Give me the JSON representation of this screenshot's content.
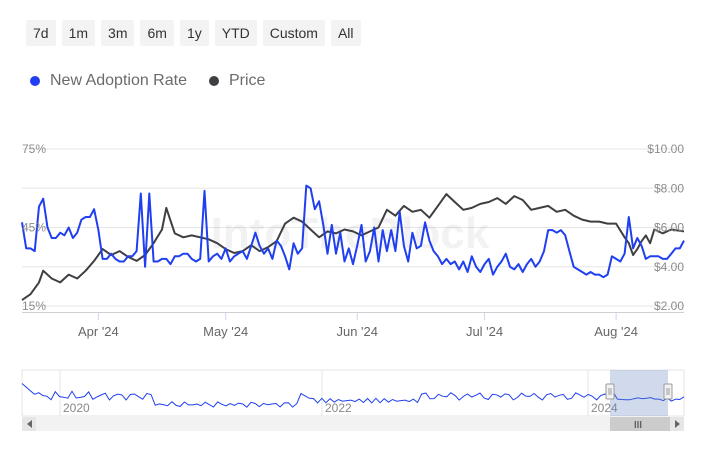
{
  "range_selector": {
    "buttons": [
      "7d",
      "1m",
      "3m",
      "6m",
      "1y",
      "YTD",
      "Custom",
      "All"
    ]
  },
  "legend": {
    "items": [
      {
        "label": "New Adoption Rate",
        "color": "#1f3ff0",
        "icon": "circle-marker"
      },
      {
        "label": "Price",
        "color": "#3d3f42",
        "icon": "circle-marker"
      }
    ]
  },
  "watermark": "IntoTheBlock",
  "colors": {
    "adoption": "#1f3ff0",
    "price": "#3d3f42",
    "grid": "#e6e6e6",
    "axis_text": "#8c8c8c",
    "navigator_mask": "rgba(102,133,194,0.3)"
  },
  "chart_data": {
    "type": "line",
    "x_range": [
      "2024-03-14",
      "2024-08-17"
    ],
    "x_ticks": [
      "Apr '24",
      "May '24",
      "Jun '24",
      "Jul '24",
      "Aug '24"
    ],
    "y_left": {
      "ticks": [
        "15%",
        "45%",
        "75%"
      ],
      "ylim": [
        0.15,
        0.75
      ]
    },
    "y_right": {
      "ticks": [
        "$2.00",
        "$4.00",
        "$6.00",
        "$8.00",
        "$10.00"
      ],
      "ylim": [
        2,
        10
      ]
    },
    "series": [
      {
        "name": "New Adoption Rate",
        "axis": "left",
        "values": [
          [
            "2024-03-14",
            0.47
          ],
          [
            "2024-03-15",
            0.37
          ],
          [
            "2024-03-16",
            0.37
          ],
          [
            "2024-03-17",
            0.36
          ],
          [
            "2024-03-18",
            0.53
          ],
          [
            "2024-03-19",
            0.56
          ],
          [
            "2024-03-20",
            0.45
          ],
          [
            "2024-03-21",
            0.41
          ],
          [
            "2024-03-22",
            0.41
          ],
          [
            "2024-03-23",
            0.43
          ],
          [
            "2024-03-24",
            0.42
          ],
          [
            "2024-03-25",
            0.45
          ],
          [
            "2024-03-26",
            0.41
          ],
          [
            "2024-03-27",
            0.43
          ],
          [
            "2024-03-28",
            0.48
          ],
          [
            "2024-03-29",
            0.49
          ],
          [
            "2024-03-30",
            0.49
          ],
          [
            "2024-03-31",
            0.52
          ],
          [
            "2024-04-01",
            0.44
          ],
          [
            "2024-04-02",
            0.33
          ],
          [
            "2024-04-03",
            0.33
          ],
          [
            "2024-04-04",
            0.35
          ],
          [
            "2024-04-05",
            0.33
          ],
          [
            "2024-04-06",
            0.32
          ],
          [
            "2024-04-07",
            0.32
          ],
          [
            "2024-04-08",
            0.34
          ],
          [
            "2024-04-09",
            0.34
          ],
          [
            "2024-04-10",
            0.36
          ],
          [
            "2024-04-11",
            0.58
          ],
          [
            "2024-04-12",
            0.3
          ],
          [
            "2024-04-13",
            0.58
          ],
          [
            "2024-04-14",
            0.32
          ],
          [
            "2024-04-15",
            0.32
          ],
          [
            "2024-04-16",
            0.33
          ],
          [
            "2024-04-17",
            0.33
          ],
          [
            "2024-04-18",
            0.31
          ],
          [
            "2024-04-19",
            0.34
          ],
          [
            "2024-04-20",
            0.34
          ],
          [
            "2024-04-21",
            0.35
          ],
          [
            "2024-04-22",
            0.35
          ],
          [
            "2024-04-23",
            0.33
          ],
          [
            "2024-04-24",
            0.32
          ],
          [
            "2024-04-25",
            0.33
          ],
          [
            "2024-04-26",
            0.59
          ],
          [
            "2024-04-27",
            0.32
          ],
          [
            "2024-04-28",
            0.34
          ],
          [
            "2024-04-29",
            0.35
          ],
          [
            "2024-04-30",
            0.33
          ],
          [
            "2024-05-01",
            0.37
          ],
          [
            "2024-05-02",
            0.32
          ],
          [
            "2024-05-03",
            0.34
          ],
          [
            "2024-05-04",
            0.35
          ],
          [
            "2024-05-05",
            0.36
          ],
          [
            "2024-05-06",
            0.33
          ],
          [
            "2024-05-07",
            0.38
          ],
          [
            "2024-05-08",
            0.43
          ],
          [
            "2024-05-09",
            0.38
          ],
          [
            "2024-05-10",
            0.35
          ],
          [
            "2024-05-11",
            0.37
          ],
          [
            "2024-05-12",
            0.33
          ],
          [
            "2024-05-13",
            0.4
          ],
          [
            "2024-05-14",
            0.38
          ],
          [
            "2024-05-15",
            0.34
          ],
          [
            "2024-05-16",
            0.29
          ],
          [
            "2024-05-17",
            0.39
          ],
          [
            "2024-05-18",
            0.35
          ],
          [
            "2024-05-19",
            0.37
          ],
          [
            "2024-05-20",
            0.61
          ],
          [
            "2024-05-21",
            0.6
          ],
          [
            "2024-05-22",
            0.52
          ],
          [
            "2024-05-23",
            0.55
          ],
          [
            "2024-05-24",
            0.46
          ],
          [
            "2024-05-25",
            0.35
          ],
          [
            "2024-05-26",
            0.46
          ],
          [
            "2024-05-27",
            0.35
          ],
          [
            "2024-05-28",
            0.43
          ],
          [
            "2024-05-29",
            0.32
          ],
          [
            "2024-05-30",
            0.37
          ],
          [
            "2024-05-31",
            0.31
          ],
          [
            "2024-06-01",
            0.38
          ],
          [
            "2024-06-02",
            0.46
          ],
          [
            "2024-06-03",
            0.32
          ],
          [
            "2024-06-04",
            0.36
          ],
          [
            "2024-06-05",
            0.45
          ],
          [
            "2024-06-06",
            0.32
          ],
          [
            "2024-06-07",
            0.44
          ],
          [
            "2024-06-08",
            0.36
          ],
          [
            "2024-06-09",
            0.44
          ],
          [
            "2024-06-10",
            0.36
          ],
          [
            "2024-06-11",
            0.51
          ],
          [
            "2024-06-12",
            0.38
          ],
          [
            "2024-06-13",
            0.32
          ],
          [
            "2024-06-14",
            0.43
          ],
          [
            "2024-06-15",
            0.37
          ],
          [
            "2024-06-16",
            0.38
          ],
          [
            "2024-06-17",
            0.47
          ],
          [
            "2024-06-18",
            0.4
          ],
          [
            "2024-06-19",
            0.36
          ],
          [
            "2024-06-20",
            0.34
          ],
          [
            "2024-06-21",
            0.31
          ],
          [
            "2024-06-22",
            0.33
          ],
          [
            "2024-06-23",
            0.31
          ],
          [
            "2024-06-24",
            0.32
          ],
          [
            "2024-06-25",
            0.29
          ],
          [
            "2024-06-26",
            0.32
          ],
          [
            "2024-06-27",
            0.28
          ],
          [
            "2024-06-28",
            0.34
          ],
          [
            "2024-06-29",
            0.3
          ],
          [
            "2024-06-30",
            0.28
          ],
          [
            "2024-07-01",
            0.31
          ],
          [
            "2024-07-02",
            0.33
          ],
          [
            "2024-07-03",
            0.27
          ],
          [
            "2024-07-04",
            0.3
          ],
          [
            "2024-07-05",
            0.32
          ],
          [
            "2024-07-06",
            0.35
          ],
          [
            "2024-07-07",
            0.3
          ],
          [
            "2024-07-08",
            0.29
          ],
          [
            "2024-07-09",
            0.31
          ],
          [
            "2024-07-10",
            0.28
          ],
          [
            "2024-07-11",
            0.31
          ],
          [
            "2024-07-12",
            0.33
          ],
          [
            "2024-07-13",
            0.3
          ],
          [
            "2024-07-14",
            0.32
          ],
          [
            "2024-07-15",
            0.36
          ],
          [
            "2024-07-16",
            0.44
          ],
          [
            "2024-07-17",
            0.44
          ],
          [
            "2024-07-18",
            0.43
          ],
          [
            "2024-07-19",
            0.44
          ],
          [
            "2024-07-20",
            0.42
          ],
          [
            "2024-07-21",
            0.36
          ],
          [
            "2024-07-22",
            0.3
          ],
          [
            "2024-07-23",
            0.29
          ],
          [
            "2024-07-24",
            0.28
          ],
          [
            "2024-07-25",
            0.27
          ],
          [
            "2024-07-26",
            0.28
          ],
          [
            "2024-07-27",
            0.27
          ],
          [
            "2024-07-28",
            0.27
          ],
          [
            "2024-07-29",
            0.26
          ],
          [
            "2024-07-30",
            0.27
          ],
          [
            "2024-07-31",
            0.34
          ],
          [
            "2024-08-01",
            0.33
          ],
          [
            "2024-08-02",
            0.32
          ],
          [
            "2024-08-03",
            0.35
          ],
          [
            "2024-08-04",
            0.49
          ],
          [
            "2024-08-05",
            0.37
          ],
          [
            "2024-08-06",
            0.41
          ],
          [
            "2024-08-07",
            0.38
          ],
          [
            "2024-08-08",
            0.33
          ],
          [
            "2024-08-09",
            0.34
          ],
          [
            "2024-08-10",
            0.34
          ],
          [
            "2024-08-11",
            0.34
          ],
          [
            "2024-08-12",
            0.33
          ],
          [
            "2024-08-13",
            0.33
          ],
          [
            "2024-08-14",
            0.35
          ],
          [
            "2024-08-15",
            0.37
          ],
          [
            "2024-08-16",
            0.37
          ],
          [
            "2024-08-17",
            0.4
          ]
        ]
      },
      {
        "name": "Price",
        "axis": "right",
        "values": [
          [
            "2024-03-14",
            2.3
          ],
          [
            "2024-03-16",
            2.6
          ],
          [
            "2024-03-18",
            3.2
          ],
          [
            "2024-03-19",
            3.8
          ],
          [
            "2024-03-21",
            3.4
          ],
          [
            "2024-03-23",
            3.2
          ],
          [
            "2024-03-25",
            3.6
          ],
          [
            "2024-03-27",
            3.4
          ],
          [
            "2024-03-29",
            3.8
          ],
          [
            "2024-03-31",
            4.3
          ],
          [
            "2024-04-02",
            4.9
          ],
          [
            "2024-04-04",
            4.6
          ],
          [
            "2024-04-06",
            4.8
          ],
          [
            "2024-04-08",
            4.5
          ],
          [
            "2024-04-10",
            4.3
          ],
          [
            "2024-04-12",
            4.6
          ],
          [
            "2024-04-14",
            5.2
          ],
          [
            "2024-04-16",
            5.9
          ],
          [
            "2024-04-17",
            7.0
          ],
          [
            "2024-04-19",
            5.7
          ],
          [
            "2024-04-21",
            5.5
          ],
          [
            "2024-04-23",
            5.6
          ],
          [
            "2024-04-25",
            5.5
          ],
          [
            "2024-04-27",
            5.4
          ],
          [
            "2024-04-29",
            5.2
          ],
          [
            "2024-05-01",
            4.9
          ],
          [
            "2024-05-03",
            4.7
          ],
          [
            "2024-05-05",
            4.8
          ],
          [
            "2024-05-07",
            5.1
          ],
          [
            "2024-05-09",
            4.8
          ],
          [
            "2024-05-11",
            5.0
          ],
          [
            "2024-05-13",
            5.3
          ],
          [
            "2024-05-15",
            6.2
          ],
          [
            "2024-05-17",
            6.5
          ],
          [
            "2024-05-19",
            6.3
          ],
          [
            "2024-05-21",
            5.9
          ],
          [
            "2024-05-23",
            5.5
          ],
          [
            "2024-05-25",
            5.8
          ],
          [
            "2024-05-27",
            5.7
          ],
          [
            "2024-05-29",
            5.9
          ],
          [
            "2024-05-31",
            5.8
          ],
          [
            "2024-06-02",
            5.6
          ],
          [
            "2024-06-04",
            5.8
          ],
          [
            "2024-06-06",
            6.0
          ],
          [
            "2024-06-08",
            6.9
          ],
          [
            "2024-06-10",
            6.6
          ],
          [
            "2024-06-12",
            7.1
          ],
          [
            "2024-06-14",
            6.8
          ],
          [
            "2024-06-16",
            6.9
          ],
          [
            "2024-06-18",
            6.5
          ],
          [
            "2024-06-20",
            7.1
          ],
          [
            "2024-06-22",
            7.7
          ],
          [
            "2024-06-24",
            7.3
          ],
          [
            "2024-06-26",
            6.9
          ],
          [
            "2024-06-28",
            7.0
          ],
          [
            "2024-06-30",
            7.2
          ],
          [
            "2024-07-02",
            7.3
          ],
          [
            "2024-07-04",
            7.5
          ],
          [
            "2024-07-06",
            7.2
          ],
          [
            "2024-07-08",
            7.6
          ],
          [
            "2024-07-10",
            7.4
          ],
          [
            "2024-07-12",
            6.9
          ],
          [
            "2024-07-14",
            7.0
          ],
          [
            "2024-07-16",
            7.1
          ],
          [
            "2024-07-18",
            6.8
          ],
          [
            "2024-07-20",
            6.9
          ],
          [
            "2024-07-22",
            6.6
          ],
          [
            "2024-07-24",
            6.4
          ],
          [
            "2024-07-26",
            6.3
          ],
          [
            "2024-07-28",
            6.3
          ],
          [
            "2024-07-30",
            6.2
          ],
          [
            "2024-08-01",
            6.2
          ],
          [
            "2024-08-03",
            5.5
          ],
          [
            "2024-08-04",
            5.2
          ],
          [
            "2024-08-05",
            4.6
          ],
          [
            "2024-08-06",
            4.9
          ],
          [
            "2024-08-07",
            5.3
          ],
          [
            "2024-08-08",
            5.6
          ],
          [
            "2024-08-09",
            5.2
          ],
          [
            "2024-08-10",
            5.9
          ],
          [
            "2024-08-12",
            5.7
          ],
          [
            "2024-08-14",
            5.9
          ],
          [
            "2024-08-17",
            5.8
          ]
        ]
      }
    ],
    "navigator": {
      "x_ticks": [
        "2020",
        "2022",
        "2024"
      ],
      "selected_range": [
        "2024-03-14",
        "2024-08-17"
      ],
      "scrollbar_grip": "III"
    }
  }
}
